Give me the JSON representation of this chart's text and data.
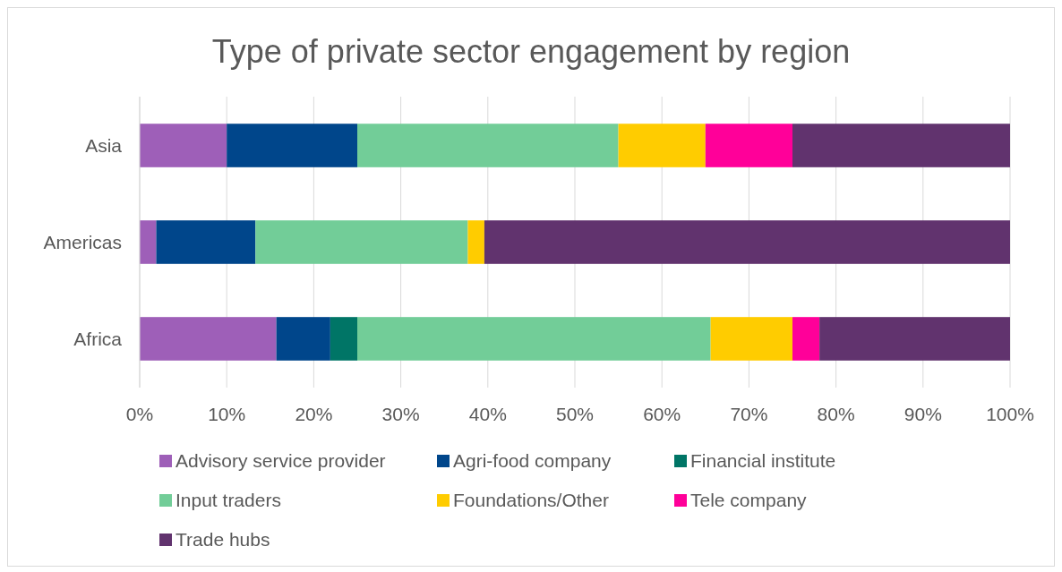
{
  "chart_data": {
    "type": "bar",
    "title": "Type of private sector engagement by region",
    "orientation": "horizontal",
    "stacked": true,
    "categories": [
      "Asia",
      "Americas",
      "Africa"
    ],
    "series": [
      {
        "name": "Advisory service provider",
        "color": "#9e5fb8",
        "values": [
          10,
          1.9,
          15.7
        ]
      },
      {
        "name": "Agri-food company",
        "color": "#00468b",
        "values": [
          15,
          11.4,
          6.2
        ]
      },
      {
        "name": "Financial institute",
        "color": "#007566",
        "values": [
          0,
          0,
          3.1
        ]
      },
      {
        "name": "Input traders",
        "color": "#72cd98",
        "values": [
          30,
          24.4,
          40.6
        ]
      },
      {
        "name": "Foundations/Other",
        "color": "#ffcc00",
        "values": [
          10,
          1.9,
          9.4
        ]
      },
      {
        "name": "Tele company",
        "color": "#ff0099",
        "values": [
          10,
          0,
          3.1
        ]
      },
      {
        "name": "Trade hubs",
        "color": "#61336e",
        "values": [
          25,
          60.4,
          21.9
        ]
      }
    ],
    "xlim": [
      0,
      100
    ],
    "xticks": [
      {
        "value": 0,
        "label": "0%"
      },
      {
        "value": 10,
        "label": "10%"
      },
      {
        "value": 20,
        "label": "20%"
      },
      {
        "value": 30,
        "label": "30%"
      },
      {
        "value": 40,
        "label": "40%"
      },
      {
        "value": 50,
        "label": "50%"
      },
      {
        "value": 60,
        "label": "60%"
      },
      {
        "value": 70,
        "label": "70%"
      },
      {
        "value": 80,
        "label": "80%"
      },
      {
        "value": 90,
        "label": "90%"
      },
      {
        "value": 100,
        "label": "100%"
      }
    ],
    "grid": "x",
    "legend": "bottom"
  }
}
